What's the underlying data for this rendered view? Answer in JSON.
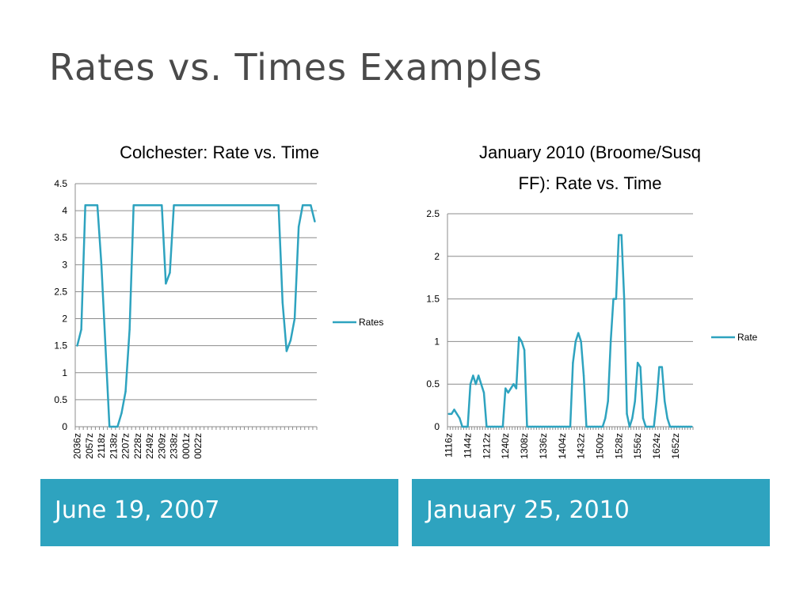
{
  "slide": {
    "title": "Rates vs. Times Examples",
    "captions": [
      "June 19, 2007",
      "January 25, 2010"
    ]
  },
  "colors": {
    "series": "#2ea3bf",
    "caption_bg": "#2ea3bf",
    "grid": "#8c8c8c",
    "text": "#000000",
    "title": "#4a4a4a"
  },
  "chart_data": [
    {
      "type": "line",
      "title_lines": [
        "Colchester:  Rate vs. Time"
      ],
      "xlabel": "",
      "ylabel": "",
      "ylim": [
        0,
        4.5
      ],
      "yticks": [
        0,
        0.5,
        1,
        1.5,
        2,
        2.5,
        3,
        3.5,
        4,
        4.5
      ],
      "grid": true,
      "legend": "right",
      "x_labels": [
        "2036z",
        "2057z",
        "2118z",
        "2138z",
        "2207z",
        "2228z",
        "2249z",
        "2309z",
        "2338z",
        "0001z",
        "0022z"
      ],
      "label_every": 3,
      "series": [
        {
          "name": "Rates",
          "values": [
            1.5,
            1.8,
            4.1,
            4.1,
            4.1,
            4.1,
            3.0,
            1.5,
            0,
            0,
            0,
            0.25,
            0.65,
            1.8,
            4.1,
            4.1,
            4.1,
            4.1,
            4.1,
            4.1,
            4.1,
            4.1,
            2.65,
            2.85,
            4.1,
            4.1,
            4.1,
            4.1,
            4.1,
            4.1,
            4.1,
            4.1,
            4.1,
            4.1,
            4.1,
            4.1,
            4.1,
            4.1,
            4.1,
            4.1,
            4.1,
            4.1,
            4.1,
            4.1,
            4.1,
            4.1,
            4.1,
            4.1,
            4.1,
            4.1,
            4.1,
            2.3,
            1.4,
            1.6,
            2.0,
            3.7,
            4.1,
            4.1,
            4.1,
            3.8
          ]
        }
      ]
    },
    {
      "type": "line",
      "title_lines": [
        "January 2010 (Broome/Susq",
        "FF):  Rate vs. Time"
      ],
      "xlabel": "",
      "ylabel": "",
      "ylim": [
        0,
        2.5
      ],
      "yticks": [
        0,
        0.5,
        1,
        1.5,
        2,
        2.5
      ],
      "grid": true,
      "legend": "right",
      "x_labels": [
        "1116z",
        "1144z",
        "1212z",
        "1240z",
        "1308z",
        "1336z",
        "1404z",
        "1432z",
        "1500z",
        "1528z",
        "1556z",
        "1624z",
        "1652z"
      ],
      "label_every": 7,
      "series": [
        {
          "name": "Rate",
          "values": [
            0.15,
            0.15,
            0.2,
            0.15,
            0.1,
            0,
            0,
            0,
            0.5,
            0.6,
            0.5,
            0.6,
            0.5,
            0.4,
            0,
            0,
            0,
            0,
            0,
            0,
            0,
            0.45,
            0.4,
            0.45,
            0.5,
            0.45,
            1.05,
            1.0,
            0.9,
            0,
            0,
            0,
            0,
            0,
            0,
            0,
            0,
            0,
            0,
            0,
            0,
            0,
            0,
            0,
            0,
            0,
            0.75,
            1.0,
            1.1,
            1.0,
            0.6,
            0,
            0,
            0,
            0,
            0,
            0,
            0,
            0.1,
            0.3,
            1.0,
            1.5,
            1.5,
            2.25,
            2.25,
            1.5,
            0.15,
            0,
            0.1,
            0.3,
            0.75,
            0.7,
            0.1,
            0,
            0,
            0,
            0,
            0.3,
            0.7,
            0.7,
            0.3,
            0.1,
            0,
            0,
            0,
            0,
            0,
            0,
            0,
            0,
            0
          ]
        }
      ]
    }
  ]
}
